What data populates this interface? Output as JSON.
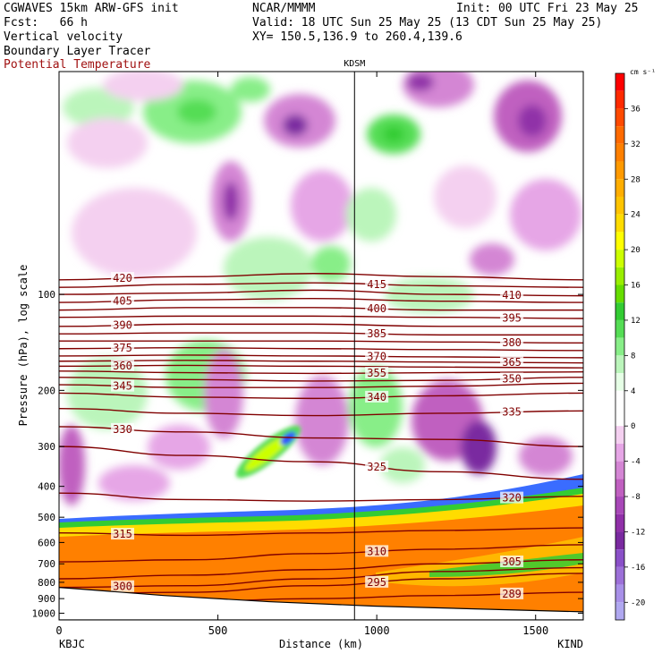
{
  "header": {
    "model": "CGWAVES 15km ARW-GFS init",
    "org": "NCAR/MMMM",
    "init": "Init: 00 UTC Fri 23 May 25",
    "fcst": "Fcst:   66 h",
    "valid": "Valid: 18 UTC Sun 25 May 25 (13 CDT Sun 25 May 25)",
    "field1": "Vertical velocity",
    "field2": "Boundary Layer Tracer",
    "field3": "Potential Temperature",
    "xy": "XY= 150.5,136.9 to 260.4,139.6"
  },
  "colors": {
    "theta": "#800000",
    "bl_tracer": "#ff8c00",
    "updraft": "#33cc33",
    "downdraft": "#8a2be2"
  },
  "chart_data": {
    "type": "heatmap",
    "xlabel": "Distance (km)",
    "ylabel": "Pressure (hPa), log scale",
    "xlim": [
      0,
      1650
    ],
    "ylim": [
      1050,
      20
    ],
    "yscale": "log",
    "x_ticks": [
      "0",
      "500",
      "1000",
      "1500"
    ],
    "x_tick_values": [
      0,
      500,
      1000,
      1500
    ],
    "y_ticks": [
      "100",
      "200",
      "300",
      "400",
      "500",
      "600",
      "700",
      "800",
      "900",
      "1000"
    ],
    "y_tick_values": [
      100,
      200,
      300,
      400,
      500,
      600,
      700,
      800,
      900,
      1000
    ],
    "station_left": "KBJC",
    "station_right": "KIND",
    "station_mid": "KDSM",
    "station_mid_x": 930,
    "colorbar": {
      "unit": "cm s⁻¹",
      "labels": [
        "36",
        "32",
        "28",
        "24",
        "20",
        "16",
        "12",
        "8",
        "4",
        "0",
        "-4",
        "-8",
        "-12",
        "-16",
        "-20"
      ],
      "label_values": [
        36,
        32,
        28,
        24,
        20,
        16,
        12,
        8,
        4,
        0,
        -4,
        -8,
        -12,
        -16,
        -20
      ],
      "levels": [
        40,
        38,
        36,
        34,
        32,
        30,
        28,
        26,
        24,
        22,
        20,
        18,
        16,
        14,
        12,
        10,
        8,
        6,
        4,
        2,
        0,
        -2,
        -4,
        -6,
        -8,
        -10,
        -12,
        -14,
        -16,
        -18,
        -20,
        -22
      ],
      "colors": [
        "#ff0000",
        "#ff2a00",
        "#ff4a00",
        "#ff6a00",
        "#ff8000",
        "#ff9a00",
        "#ffae00",
        "#ffc400",
        "#ffdc00",
        "#ffff00",
        "#ccff00",
        "#99ee00",
        "#66dd00",
        "#33cc33",
        "#55dd55",
        "#88ee88",
        "#bbf5bb",
        "#e6ffe6",
        "#ffffff",
        "#ffffff",
        "#f4d0f0",
        "#e6a6e6",
        "#d486d4",
        "#c060c0",
        "#a848b8",
        "#9030a8",
        "#7a2aa0",
        "#8a50c8",
        "#9c70d8",
        "#a890e8",
        "#b0a8f0"
      ]
    },
    "theta_contours": [
      {
        "label": "420",
        "p": [
          90,
          88,
          86,
          88,
          90
        ]
      },
      {
        "label": "415",
        "p": [
          95,
          93,
          92,
          94,
          95
        ]
      },
      {
        "label": "410",
        "p": [
          100,
          99,
          97,
          100,
          101
        ]
      },
      {
        "label": "405",
        "p": [
          106,
          104,
          103,
          105,
          106
        ]
      },
      {
        "label": "400",
        "p": [
          112,
          110,
          110,
          112,
          112
        ]
      },
      {
        "label": "395",
        "p": [
          118,
          117,
          117,
          118,
          119
        ]
      },
      {
        "label": "390",
        "p": [
          126,
          124,
          124,
          126,
          126
        ]
      },
      {
        "label": "385",
        "p": [
          133,
          132,
          132,
          134,
          134
        ]
      },
      {
        "label": "380",
        "p": [
          140,
          140,
          140,
          141,
          142
        ]
      },
      {
        "label": "375",
        "p": [
          148,
          147,
          148,
          149,
          150
        ]
      },
      {
        "label": "370",
        "p": [
          156,
          155,
          156,
          157,
          158
        ]
      },
      {
        "label": "365",
        "p": [
          162,
          161,
          162,
          163,
          164
        ]
      },
      {
        "label": "360",
        "p": [
          168,
          167,
          168,
          169,
          170
        ]
      },
      {
        "label": "355",
        "p": [
          174,
          176,
          177,
          176,
          175
        ]
      },
      {
        "label": "350",
        "p": [
          182,
          185,
          187,
          186,
          182
        ]
      },
      {
        "label": "345",
        "p": [
          192,
          196,
          196,
          194,
          190
        ]
      },
      {
        "label": "340",
        "p": [
          204,
          210,
          212,
          208,
          204
        ]
      },
      {
        "label": "335",
        "p": [
          228,
          236,
          240,
          236,
          232
        ]
      },
      {
        "label": "330",
        "p": [
          260,
          270,
          282,
          285,
          300
        ]
      },
      {
        "label": "325",
        "p": [
          300,
          320,
          335,
          360,
          380
        ]
      },
      {
        "label": "320",
        "p": [
          420,
          440,
          445,
          440,
          430
        ]
      },
      {
        "label": "315",
        "p": [
          560,
          570,
          560,
          550,
          540
        ]
      },
      {
        "label": "310",
        "p": [
          690,
          680,
          650,
          630,
          610
        ]
      },
      {
        "label": "305",
        "p": [
          780,
          760,
          730,
          700,
          680
        ]
      },
      {
        "label": "300",
        "p": [
          830,
          820,
          780,
          740,
          720
        ]
      },
      {
        "label": "295",
        "p": [
          870,
          860,
          820,
          780,
          750
        ]
      },
      {
        "label": "289",
        "p": [
          930,
          920,
          900,
          880,
          860
        ]
      }
    ],
    "theta_contour_x": [
      0,
      400,
      800,
      1200,
      1650
    ],
    "terrain_top_hPa": [
      830,
      880,
      920,
      950,
      970,
      990
    ]
  }
}
